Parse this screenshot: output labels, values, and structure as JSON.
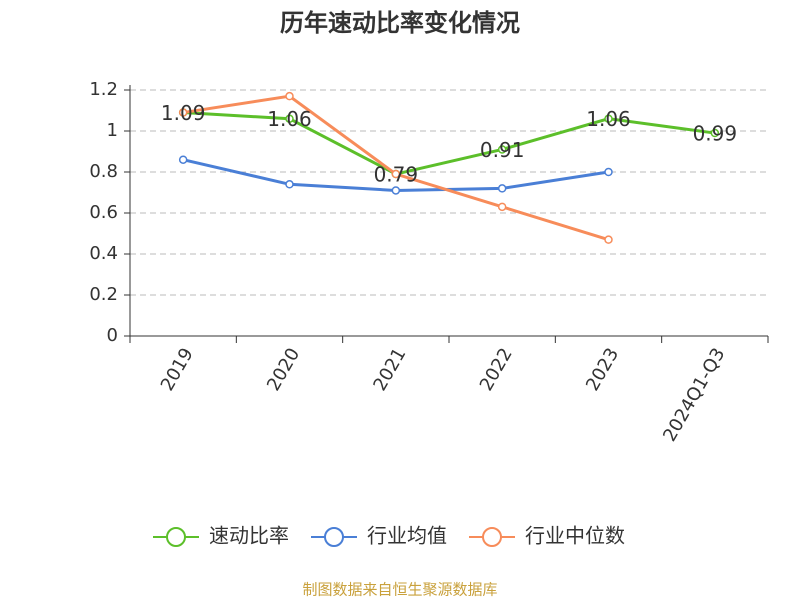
{
  "chart_data": {
    "type": "line",
    "title": "历年速动比率变化情况",
    "categories": [
      "2019",
      "2020",
      "2021",
      "2022",
      "2023",
      "2024Q1-Q3"
    ],
    "series": [
      {
        "name": "速动比率",
        "color": "#5cbf2a",
        "values": [
          1.09,
          1.06,
          0.79,
          0.91,
          1.06,
          0.99
        ],
        "labels": true
      },
      {
        "name": "行业均值",
        "color": "#4a7fd6",
        "values": [
          0.86,
          0.74,
          0.71,
          0.72,
          0.8,
          null
        ]
      },
      {
        "name": "行业中位数",
        "color": "#f78c5a",
        "values": [
          1.09,
          1.17,
          0.79,
          0.63,
          0.47,
          null
        ]
      }
    ],
    "ylim": [
      0,
      1.2
    ],
    "yticks": [
      0,
      0.2,
      0.4,
      0.6,
      0.8,
      1,
      1.2
    ],
    "grid": true,
    "legend": "bottom",
    "source": "制图数据来自恒生聚源数据库"
  }
}
